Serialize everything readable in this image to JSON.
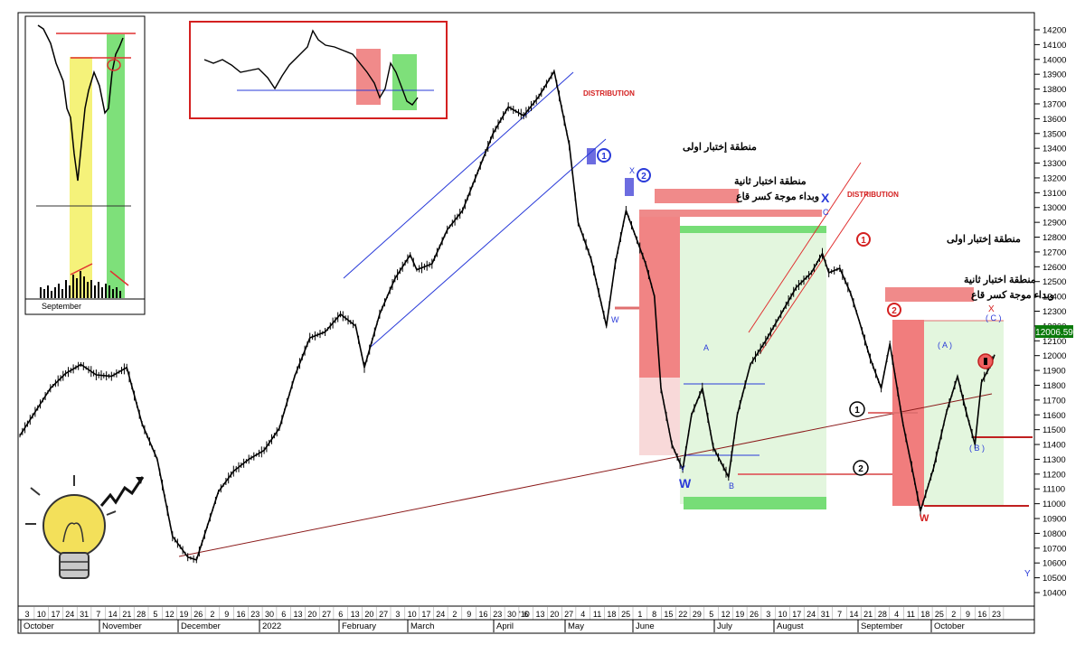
{
  "chart_data": {
    "type": "line",
    "title": "",
    "last_price": "12006.59",
    "y_ticks": [
      14200,
      14100,
      14000,
      13900,
      13800,
      13700,
      13600,
      13500,
      13400,
      13300,
      13200,
      13100,
      13000,
      12900,
      12800,
      12700,
      12600,
      12500,
      12400,
      12300,
      12200,
      12100,
      12000,
      11900,
      11800,
      11700,
      11600,
      11500,
      11400,
      11300,
      11200,
      11100,
      11000,
      10900,
      10800,
      10700,
      10600,
      10500,
      10400
    ],
    "ylim": [
      10350,
      14250
    ],
    "x_day_labels": [
      "3",
      "10",
      "17",
      "24",
      "31",
      "7",
      "14",
      "21",
      "28",
      "5",
      "12",
      "19",
      "26",
      "2",
      "9",
      "16",
      "23",
      "30",
      "6",
      "13",
      "20",
      "27",
      "6",
      "13",
      "20",
      "27",
      "3",
      "10",
      "17",
      "24",
      "2",
      "9",
      "16",
      "23",
      "30",
      "6",
      "13",
      "20",
      "27",
      "4",
      "11",
      "18",
      "25",
      "1",
      "8",
      "15",
      "22",
      "29",
      "5",
      "12",
      "19",
      "26",
      "3",
      "10",
      "17",
      "24",
      "31",
      "7",
      "14",
      "21",
      "28",
      "4",
      "11",
      "18",
      "25",
      "2",
      "9",
      "16",
      "23"
    ],
    "x_month_labels": [
      "October",
      "November",
      "December",
      "2022",
      "February",
      "March",
      "April",
      "May",
      "June",
      "July",
      "August",
      "September",
      "October"
    ],
    "x_year_marker": "'10",
    "series": [
      {
        "values": [
          [
            "2021-10-01",
            11460
          ],
          [
            "2021-10-08",
            11620
          ],
          [
            "2021-10-15",
            11780
          ],
          [
            "2021-10-22",
            11880
          ],
          [
            "2021-10-29",
            11940
          ],
          [
            "2021-11-05",
            11870
          ],
          [
            "2021-11-12",
            11860
          ],
          [
            "2021-11-19",
            11920
          ],
          [
            "2021-11-26",
            11540
          ],
          [
            "2021-12-03",
            11300
          ],
          [
            "2021-12-10",
            10780
          ],
          [
            "2021-12-17",
            10640
          ],
          [
            "2021-12-21",
            10620
          ],
          [
            "2021-12-31",
            11080
          ],
          [
            "2022-01-07",
            11220
          ],
          [
            "2022-01-14",
            11300
          ],
          [
            "2022-01-21",
            11360
          ],
          [
            "2022-01-28",
            11510
          ],
          [
            "2022-02-04",
            11860
          ],
          [
            "2022-02-11",
            12120
          ],
          [
            "2022-02-18",
            12160
          ],
          [
            "2022-02-25",
            12280
          ],
          [
            "2022-03-04",
            12200
          ],
          [
            "2022-03-08",
            11920
          ],
          [
            "2022-03-15",
            12280
          ],
          [
            "2022-03-22",
            12520
          ],
          [
            "2022-03-29",
            12680
          ],
          [
            "2022-04-01",
            12580
          ],
          [
            "2022-04-08",
            12620
          ],
          [
            "2022-04-15",
            12850
          ],
          [
            "2022-04-22",
            12980
          ],
          [
            "2022-04-29",
            13240
          ],
          [
            "2022-05-06",
            13500
          ],
          [
            "2022-05-13",
            13680
          ],
          [
            "2022-05-20",
            13620
          ],
          [
            "2022-05-27",
            13750
          ],
          [
            "2022-06-03",
            13920
          ],
          [
            "2022-06-10",
            13420
          ],
          [
            "2022-06-14",
            12900
          ],
          [
            "2022-06-20",
            12650
          ],
          [
            "2022-06-27",
            12200
          ],
          [
            "2022-07-01",
            12620
          ],
          [
            "2022-07-06",
            12980
          ],
          [
            "2022-07-11",
            12780
          ],
          [
            "2022-07-15",
            12620
          ],
          [
            "2022-07-19",
            12400
          ],
          [
            "2022-07-22",
            11780
          ],
          [
            "2022-07-27",
            11400
          ],
          [
            "2022-08-01",
            11230
          ],
          [
            "2022-08-05",
            11600
          ],
          [
            "2022-08-10",
            11780
          ],
          [
            "2022-08-15",
            11380
          ],
          [
            "2022-08-22",
            11180
          ],
          [
            "2022-08-26",
            11600
          ],
          [
            "2022-09-01",
            11940
          ],
          [
            "2022-09-08",
            12100
          ],
          [
            "2022-09-15",
            12280
          ],
          [
            "2022-09-22",
            12460
          ],
          [
            "2022-09-29",
            12560
          ],
          [
            "2022-10-04",
            12690
          ],
          [
            "2022-10-07",
            12560
          ],
          [
            "2022-10-12",
            12590
          ],
          [
            "2022-10-17",
            12420
          ],
          [
            "2022-10-21",
            12230
          ],
          [
            "2022-10-26",
            11980
          ],
          [
            "2022-10-31",
            11780
          ],
          [
            "2022-11-04",
            12080
          ],
          [
            "2022-11-10",
            11540
          ],
          [
            "2022-11-14",
            11250
          ],
          [
            "2022-11-18",
            10950
          ],
          [
            "2022-11-24",
            11240
          ],
          [
            "2022-11-30",
            11620
          ],
          [
            "2022-12-05",
            11860
          ],
          [
            "2022-12-09",
            11620
          ],
          [
            "2022-12-13",
            11400
          ],
          [
            "2022-12-16",
            11820
          ],
          [
            "2022-12-20",
            11930
          ],
          [
            "2022-12-22",
            12006
          ]
        ]
      }
    ],
    "annotations": {
      "distribution_1": "DISTRIBUTION",
      "distribution_2": "DISTRIBUTION",
      "zone1_label": "منطقة إختبار اولى",
      "zone2_label_line1": "منطقة اختبار ثانية",
      "zone2_label_line2": "وبداء موجة كسر قاع",
      "zone3_label": "منطقة إختبار اولى",
      "zone4_label_line1": "منطقة اختبار ثانية",
      "zone4_label_line2": "وبداء موجة كسر قاع",
      "wave_W_small": "W",
      "wave_X_small": "X",
      "wave_X_big": "X",
      "wave_W_big": "W",
      "wave_Y": "Y",
      "wave_A": "A",
      "wave_B": "B",
      "wave_C": "C",
      "wave_W_red": "W",
      "wave_X_red": "X",
      "wave_paren_A": "( A )",
      "wave_paren_B": "( B )",
      "wave_paren_C": "( C )",
      "edge_Y": "Y",
      "circle_1": "1",
      "circle_2": "2",
      "inset_label": "September"
    }
  }
}
